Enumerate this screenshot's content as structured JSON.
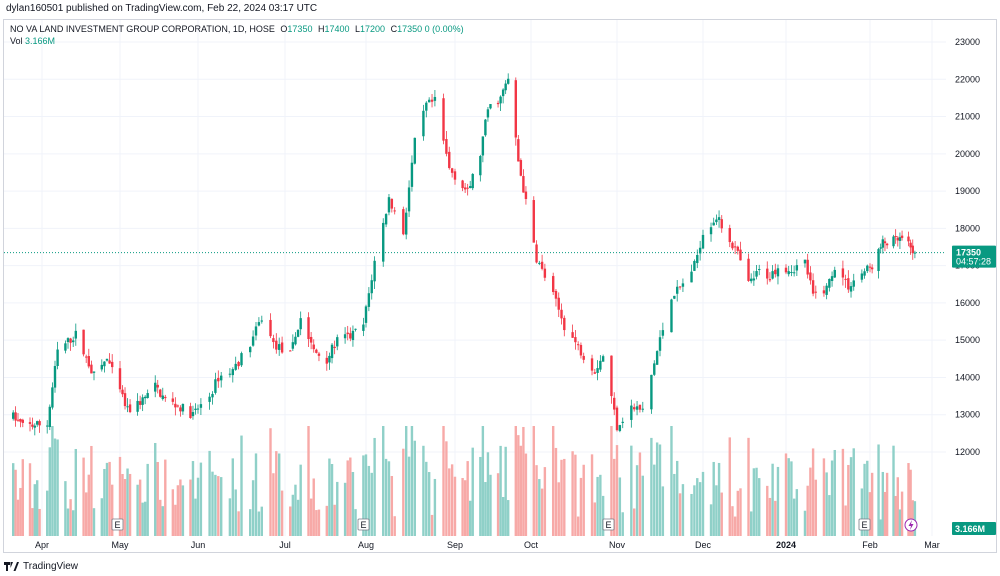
{
  "header": {
    "published_by": "dylan160501 published on TradingView.com, Feb 22, 2024 03:17 UTC"
  },
  "legend": {
    "symbol": "NO VA LAND INVESTMENT GROUP CORPORATION, 1D, HOSE",
    "open_label": "O",
    "open": "17350",
    "high_label": "H",
    "high": "17400",
    "low_label": "L",
    "low": "17200",
    "close_label": "C",
    "close": "17350",
    "change": "0 (0.00%)",
    "vol_label": "Vol",
    "vol": "3.166M"
  },
  "price_tag": {
    "price": "17350",
    "countdown": "04:57:28"
  },
  "volume_tag": "3.166M",
  "earnings_marker": "E",
  "footer": {
    "logo_text": "TradingView"
  },
  "colors": {
    "up": "#089981",
    "down": "#f23645",
    "vol_up": "#8fd0c8",
    "vol_down": "#f7a9a7",
    "grid": "#f0f3fa",
    "axis_text": "#131722",
    "lightning": "#9c27b0"
  },
  "chart_data": {
    "type": "candlestick",
    "title": "NO VA LAND INVESTMENT GROUP CORPORATION, 1D, HOSE",
    "x_tick_labels": [
      "Apr",
      "May",
      "Jun",
      "Jul",
      "Aug",
      "Sep",
      "Oct",
      "Nov",
      "Dec",
      "2024",
      "Feb",
      "Mar"
    ],
    "y_tick_labels": [
      "12000",
      "13000",
      "14000",
      "15000",
      "16000",
      "17000",
      "18000",
      "19000",
      "20000",
      "21000",
      "22000",
      "23000"
    ],
    "ylim": [
      11800,
      23300
    ],
    "grid": true,
    "current_price": 17350,
    "earnings_markers": [
      "May",
      "Aug",
      "Nov",
      "Feb"
    ],
    "waypoints": [
      [
        "2023-03-20",
        12950
      ],
      [
        "2023-03-24",
        12700
      ],
      [
        "2023-04-03",
        12750
      ],
      [
        "2023-04-07",
        14700
      ],
      [
        "2023-04-14",
        15150
      ],
      [
        "2023-04-21",
        14050
      ],
      [
        "2023-04-26",
        14500
      ],
      [
        "2023-05-04",
        13100
      ],
      [
        "2023-05-10",
        13400
      ],
      [
        "2023-05-15",
        13750
      ],
      [
        "2023-05-19",
        13400
      ],
      [
        "2023-05-25",
        13200
      ],
      [
        "2023-05-30",
        13000
      ],
      [
        "2023-06-05",
        13500
      ],
      [
        "2023-06-08",
        14000
      ],
      [
        "2023-06-13",
        14200
      ],
      [
        "2023-06-19",
        14900
      ],
      [
        "2023-06-23",
        15600
      ],
      [
        "2023-06-27",
        14900
      ],
      [
        "2023-07-03",
        14600
      ],
      [
        "2023-07-07",
        15600
      ],
      [
        "2023-07-12",
        14700
      ],
      [
        "2023-07-17",
        14500
      ],
      [
        "2023-07-21",
        15000
      ],
      [
        "2023-07-26",
        15100
      ],
      [
        "2023-07-31",
        15400
      ],
      [
        "2023-08-04",
        17100
      ],
      [
        "2023-08-09",
        18800
      ],
      [
        "2023-08-14",
        17900
      ],
      [
        "2023-08-18",
        20300
      ],
      [
        "2023-08-22",
        21300
      ],
      [
        "2023-08-25",
        21400
      ],
      [
        "2023-08-30",
        19600
      ],
      [
        "2023-09-06",
        18950
      ],
      [
        "2023-09-11",
        20000
      ],
      [
        "2023-09-14",
        21200
      ],
      [
        "2023-09-19",
        21500
      ],
      [
        "2023-09-22",
        22000
      ],
      [
        "2023-09-26",
        19800
      ],
      [
        "2023-10-03",
        17200
      ],
      [
        "2023-10-09",
        16200
      ],
      [
        "2023-10-13",
        15400
      ],
      [
        "2023-10-19",
        14700
      ],
      [
        "2023-10-24",
        14200
      ],
      [
        "2023-10-27",
        14600
      ],
      [
        "2023-11-01",
        12700
      ],
      [
        "2023-11-06",
        13200
      ],
      [
        "2023-11-10",
        13100
      ],
      [
        "2023-11-15",
        14700
      ],
      [
        "2023-11-20",
        16200
      ],
      [
        "2023-11-23",
        16400
      ],
      [
        "2023-11-28",
        17000
      ],
      [
        "2023-12-01",
        17900
      ],
      [
        "2023-12-06",
        18300
      ],
      [
        "2023-12-11",
        17700
      ],
      [
        "2023-12-14",
        17300
      ],
      [
        "2023-12-18",
        16500
      ],
      [
        "2023-12-22",
        16850
      ],
      [
        "2023-12-26",
        16700
      ],
      [
        "2023-12-29",
        17000
      ],
      [
        "2024-01-03",
        16900
      ],
      [
        "2024-01-08",
        17100
      ],
      [
        "2024-01-11",
        16200
      ],
      [
        "2024-01-16",
        16400
      ],
      [
        "2024-01-19",
        17000
      ],
      [
        "2024-01-24",
        16450
      ],
      [
        "2024-01-29",
        16800
      ],
      [
        "2024-02-02",
        17000
      ],
      [
        "2024-02-07",
        17600
      ],
      [
        "2024-02-16",
        17700
      ],
      [
        "2024-02-22",
        17350
      ]
    ],
    "last_candle": {
      "date": "2024-02-22",
      "open": 17350,
      "high": 17400,
      "low": 17200,
      "close": 17350,
      "volume": 3166000
    }
  }
}
